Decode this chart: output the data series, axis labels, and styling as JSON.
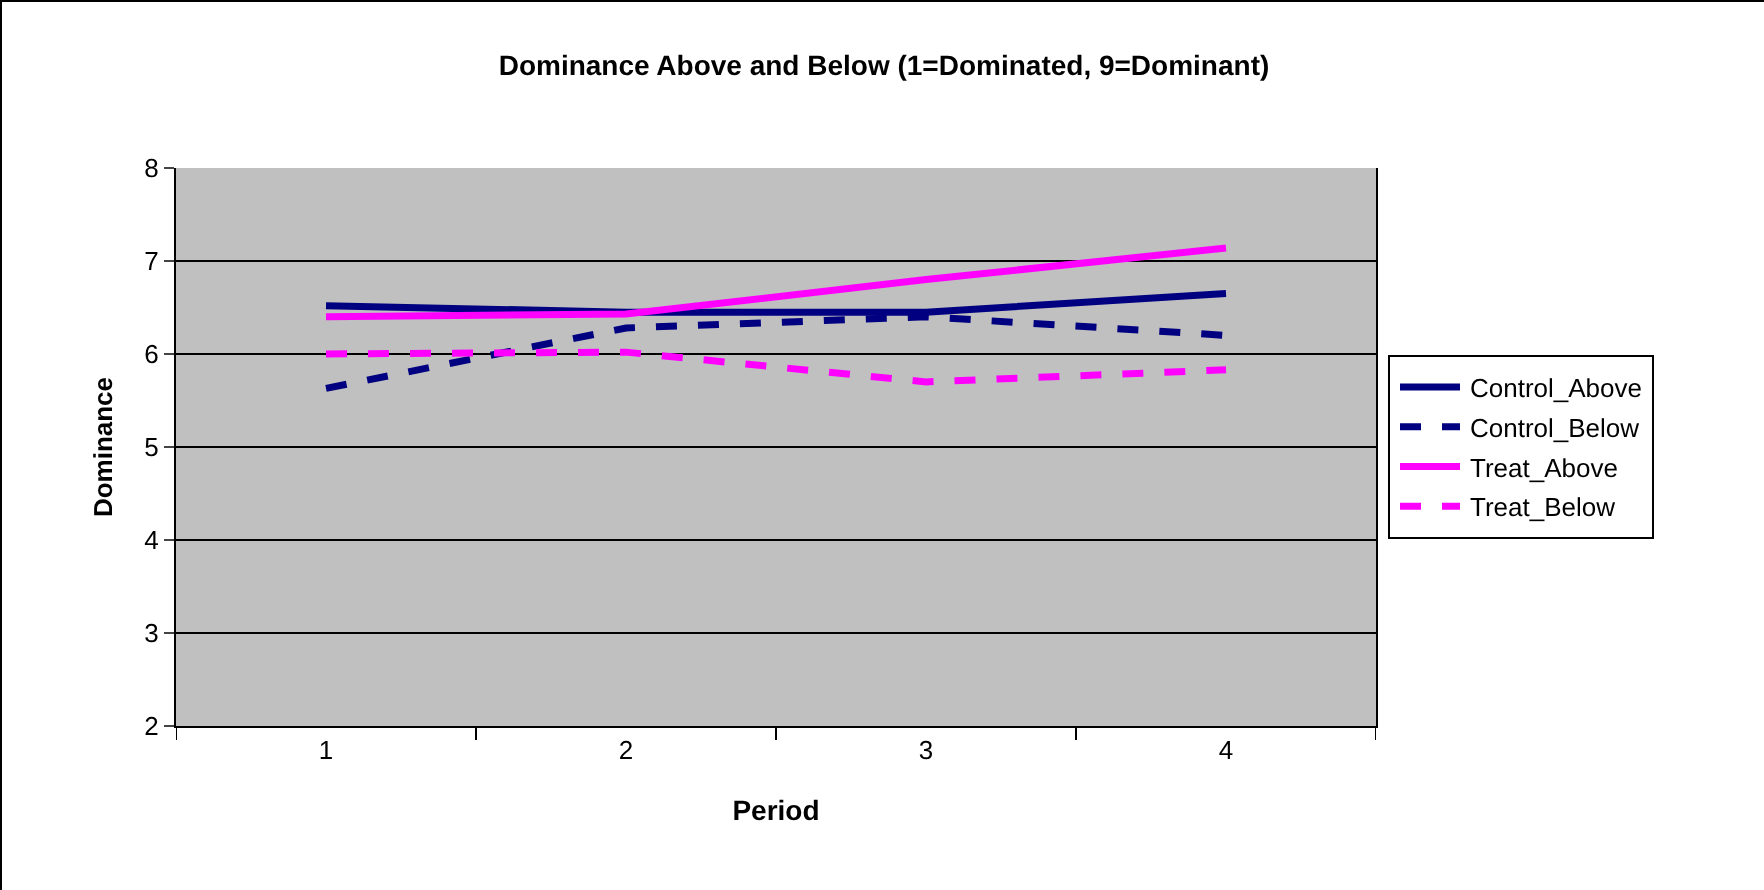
{
  "chart_data": {
    "type": "line",
    "title": "Dominance Above and Below (1=Dominated, 9=Dominant)",
    "xlabel": "Period",
    "ylabel": "Dominance",
    "categories": [
      "1",
      "2",
      "3",
      "4"
    ],
    "series": [
      {
        "name": "Control_Above",
        "color": "#000080",
        "values": [
          6.52,
          6.45,
          6.45,
          6.65
        ],
        "line_style": "solid"
      },
      {
        "name": "Control_Below",
        "color": "#000080",
        "values": [
          5.63,
          6.28,
          6.4,
          6.2
        ],
        "line_style": "dashed"
      },
      {
        "name": "Treat_Above",
        "color": "#ff00ff",
        "values": [
          6.4,
          6.43,
          6.8,
          7.14
        ],
        "line_style": "solid"
      },
      {
        "name": "Treat_Below",
        "color": "#ff00ff",
        "values": [
          6.0,
          6.02,
          5.7,
          5.83
        ],
        "line_style": "dashed"
      }
    ],
    "ylim": [
      2,
      8
    ],
    "yticks": [
      2,
      3,
      4,
      5,
      6,
      7,
      8
    ],
    "grid": "y",
    "legend": "right",
    "marker": "none"
  }
}
